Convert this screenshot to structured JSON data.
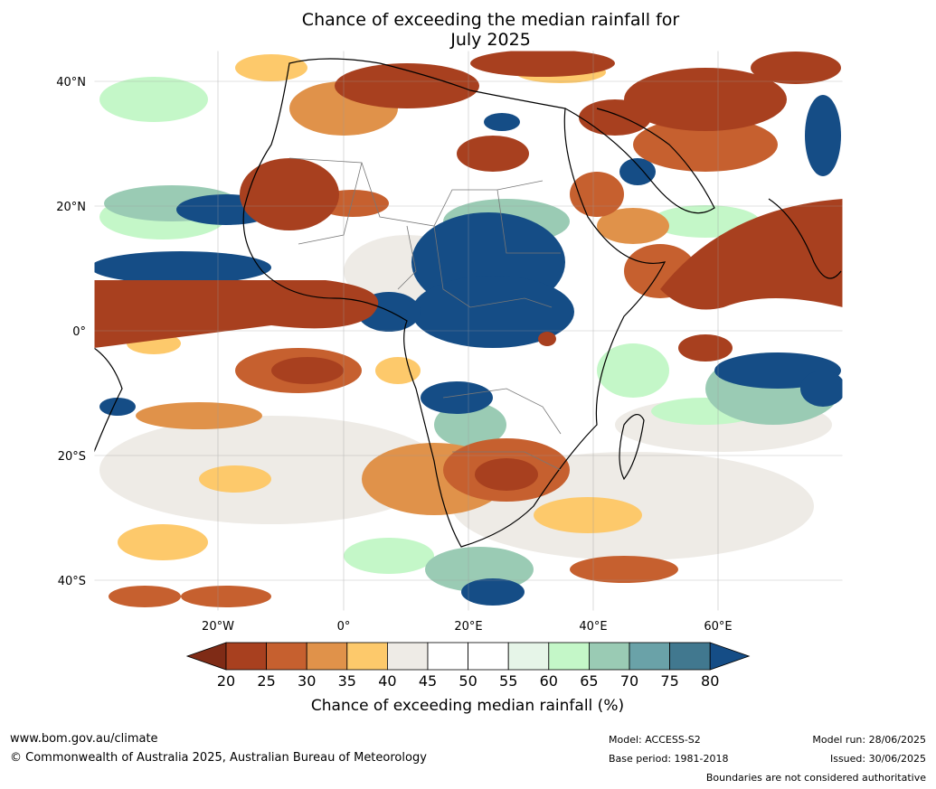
{
  "header": {
    "title_line1": "Chance of exceeding the median rainfall for",
    "title_line2": "July 2025"
  },
  "map": {
    "lon_labels": [
      "20°W",
      "0°",
      "20°E",
      "40°E",
      "60°E"
    ],
    "lat_labels": [
      "40°N",
      "20°N",
      "0°",
      "20°S",
      "40°S"
    ],
    "region": "Africa"
  },
  "colorbar": {
    "ticks": [
      "20",
      "25",
      "30",
      "35",
      "40",
      "45",
      "50",
      "55",
      "60",
      "65",
      "70",
      "75",
      "80"
    ],
    "label": "Chance of exceeding median rainfall (%)",
    "colors": [
      "#7f2b16",
      "#a8401f",
      "#c6602f",
      "#e0924a",
      "#fdc96b",
      "#eeebe6",
      "#ffffff",
      "#ffffff",
      "#e6f5e8",
      "#c4f7c8",
      "#9acbb4",
      "#6aa2a8",
      "#41788f",
      "#154d86"
    ]
  },
  "footer": {
    "website": "www.bom.gov.au/climate",
    "copyright": "© Commonwealth of Australia 2025, Australian Bureau of Meteorology",
    "model": "Model: ACCESS-S2",
    "base_period": "Base period: 1981-2018",
    "model_run": "Model run: 28/06/2025",
    "issued": "Issued: 30/06/2025",
    "boundaries_note": "Boundaries are not considered authoritative"
  }
}
